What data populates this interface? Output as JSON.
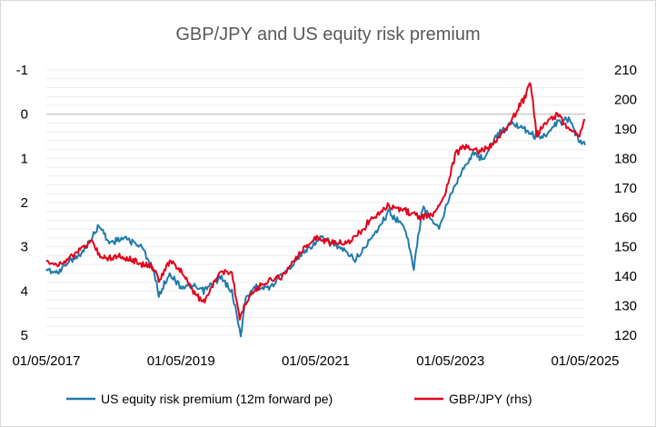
{
  "chart_data": {
    "type": "line",
    "title": "GBP/JPY and US equity risk premium",
    "xlabel": "",
    "ylabel": "",
    "x_ticks": [
      "01/05/2017",
      "01/05/2019",
      "01/05/2021",
      "01/05/2023",
      "01/05/2025"
    ],
    "xlim": [
      "2017-05-01",
      "2025-05-01"
    ],
    "y_left": {
      "ticks": [
        "-1",
        "0",
        "1",
        "2",
        "3",
        "4",
        "5"
      ],
      "range": [
        -1,
        5
      ],
      "inverted": true
    },
    "y_right": {
      "ticks": [
        "120",
        "130",
        "140",
        "150",
        "160",
        "170",
        "180",
        "190",
        "200",
        "210"
      ],
      "range": [
        120,
        210
      ]
    },
    "grid": true,
    "legend_position": "bottom",
    "series": [
      {
        "name": "US equity risk premium (12m forward pe)",
        "axis": "left",
        "color": "#1f7bab",
        "points": [
          [
            "2017-05-01",
            3.5
          ],
          [
            "2017-07-01",
            3.6
          ],
          [
            "2017-09-01",
            3.3
          ],
          [
            "2017-11-01",
            3.2
          ],
          [
            "2018-01-01",
            2.8
          ],
          [
            "2018-02-15",
            2.5
          ],
          [
            "2018-04-01",
            2.9
          ],
          [
            "2018-07-01",
            2.8
          ],
          [
            "2018-10-01",
            3.0
          ],
          [
            "2018-12-01",
            3.5
          ],
          [
            "2019-01-01",
            4.1
          ],
          [
            "2019-03-01",
            3.6
          ],
          [
            "2019-05-01",
            3.9
          ],
          [
            "2019-07-01",
            3.9
          ],
          [
            "2019-09-01",
            4.0
          ],
          [
            "2019-12-01",
            3.7
          ],
          [
            "2020-02-01",
            4.0
          ],
          [
            "2020-03-20",
            5.0
          ],
          [
            "2020-04-15",
            4.2
          ],
          [
            "2020-06-01",
            3.9
          ],
          [
            "2020-09-01",
            3.9
          ],
          [
            "2020-12-01",
            3.5
          ],
          [
            "2021-03-01",
            3.1
          ],
          [
            "2021-06-01",
            2.8
          ],
          [
            "2021-09-01",
            3.0
          ],
          [
            "2021-12-01",
            3.3
          ],
          [
            "2022-03-01",
            2.8
          ],
          [
            "2022-06-01",
            2.2
          ],
          [
            "2022-09-01",
            2.6
          ],
          [
            "2022-10-15",
            3.5
          ],
          [
            "2022-12-01",
            2.1
          ],
          [
            "2023-03-01",
            2.6
          ],
          [
            "2023-05-01",
            1.8
          ],
          [
            "2023-07-01",
            1.3
          ],
          [
            "2023-09-01",
            0.9
          ],
          [
            "2023-11-01",
            1.0
          ],
          [
            "2024-01-01",
            0.5
          ],
          [
            "2024-04-01",
            0.2
          ],
          [
            "2024-06-01",
            0.3
          ],
          [
            "2024-08-01",
            0.5
          ],
          [
            "2024-10-01",
            0.5
          ],
          [
            "2024-12-01",
            0.2
          ],
          [
            "2025-02-01",
            0.1
          ],
          [
            "2025-04-01",
            0.6
          ],
          [
            "2025-05-01",
            0.7
          ]
        ]
      },
      {
        "name": "GBP/JPY (rhs)",
        "axis": "right",
        "color": "#e3001b",
        "points": [
          [
            "2017-05-01",
            145
          ],
          [
            "2017-07-01",
            144
          ],
          [
            "2017-09-01",
            146
          ],
          [
            "2017-11-01",
            149
          ],
          [
            "2018-01-01",
            152
          ],
          [
            "2018-03-01",
            146
          ],
          [
            "2018-06-01",
            147
          ],
          [
            "2018-09-01",
            145
          ],
          [
            "2018-12-01",
            143
          ],
          [
            "2019-01-01",
            139
          ],
          [
            "2019-03-01",
            145
          ],
          [
            "2019-05-01",
            142
          ],
          [
            "2019-07-01",
            135
          ],
          [
            "2019-09-01",
            131
          ],
          [
            "2019-12-01",
            142
          ],
          [
            "2020-02-01",
            141
          ],
          [
            "2020-03-15",
            126
          ],
          [
            "2020-05-01",
            133
          ],
          [
            "2020-08-01",
            138
          ],
          [
            "2020-11-01",
            140
          ],
          [
            "2021-02-01",
            148
          ],
          [
            "2021-05-01",
            153
          ],
          [
            "2021-08-01",
            151
          ],
          [
            "2021-11-01",
            152
          ],
          [
            "2022-01-01",
            155
          ],
          [
            "2022-03-01",
            160
          ],
          [
            "2022-06-01",
            164
          ],
          [
            "2022-09-01",
            162
          ],
          [
            "2022-12-01",
            160
          ],
          [
            "2023-02-01",
            161
          ],
          [
            "2023-04-01",
            168
          ],
          [
            "2023-06-01",
            182
          ],
          [
            "2023-08-01",
            184
          ],
          [
            "2023-10-01",
            182
          ],
          [
            "2023-12-01",
            184
          ],
          [
            "2024-03-01",
            190
          ],
          [
            "2024-06-01",
            200
          ],
          [
            "2024-07-10",
            206
          ],
          [
            "2024-08-10",
            188
          ],
          [
            "2024-10-01",
            192
          ],
          [
            "2024-12-01",
            195
          ],
          [
            "2025-02-01",
            190
          ],
          [
            "2025-04-01",
            188
          ],
          [
            "2025-05-01",
            193
          ]
        ]
      }
    ]
  }
}
